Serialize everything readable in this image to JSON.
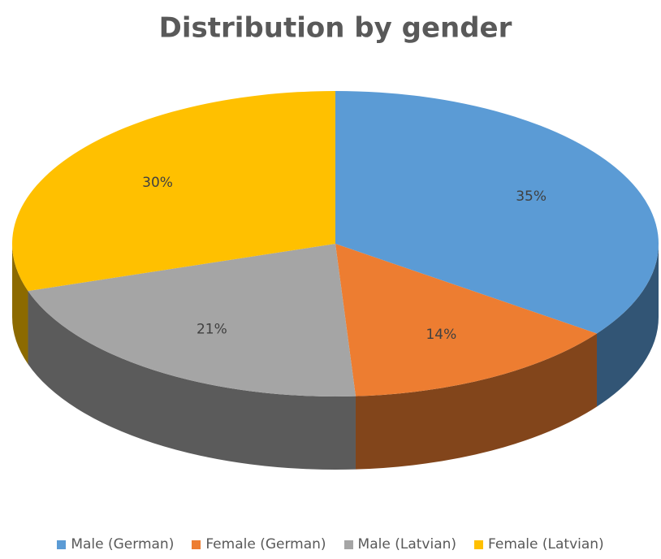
{
  "chart_data": {
    "type": "pie",
    "title": "Distribution by gender",
    "categories": [
      "Male (German)",
      "Female (German)",
      "Male (Latvian)",
      "Female (Latvian)"
    ],
    "values": [
      35,
      14,
      21,
      30
    ],
    "value_labels": [
      "35%",
      "14%",
      "21%",
      "30%"
    ],
    "colors": [
      "#5b9bd5",
      "#ed7d31",
      "#a5a5a5",
      "#ffc000"
    ],
    "legend": "bottom"
  }
}
